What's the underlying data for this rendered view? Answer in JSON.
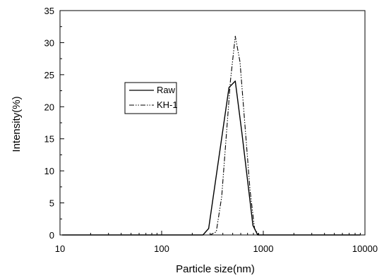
{
  "chart_data": {
    "type": "line",
    "xlabel": "Particle size(nm)",
    "ylabel": "Intensity(%)",
    "xscale": "log",
    "xlim": [
      10,
      10000
    ],
    "ylim": [
      0,
      35
    ],
    "x_ticks": [
      10,
      100,
      1000,
      10000
    ],
    "x_tick_labels": [
      "10",
      "100",
      "1000",
      "10000"
    ],
    "y_ticks": [
      0,
      5,
      10,
      15,
      20,
      25,
      30,
      35
    ],
    "y_tick_labels": [
      "0",
      "5",
      "10",
      "15",
      "20",
      "25",
      "30",
      "35"
    ],
    "grid": false,
    "legend_position": "upper-left inside plot",
    "series": [
      {
        "name": "Raw",
        "style": "solid",
        "color": "#000000",
        "points": [
          [
            10.5,
            0
          ],
          [
            255,
            0
          ],
          [
            290,
            1
          ],
          [
            460,
            23
          ],
          [
            530,
            24
          ],
          [
            615,
            16
          ],
          [
            790,
            1.5
          ],
          [
            880,
            0
          ],
          [
            9000,
            0
          ]
        ]
      },
      {
        "name": "KH-1",
        "style": "dash-dot-dot",
        "color": "#000000",
        "points": [
          [
            10.5,
            0
          ],
          [
            300,
            0
          ],
          [
            345,
            0.5
          ],
          [
            390,
            6
          ],
          [
            475,
            24
          ],
          [
            530,
            31
          ],
          [
            590,
            27
          ],
          [
            740,
            7
          ],
          [
            820,
            1
          ],
          [
            900,
            0
          ],
          [
            9000,
            0
          ]
        ]
      }
    ]
  }
}
